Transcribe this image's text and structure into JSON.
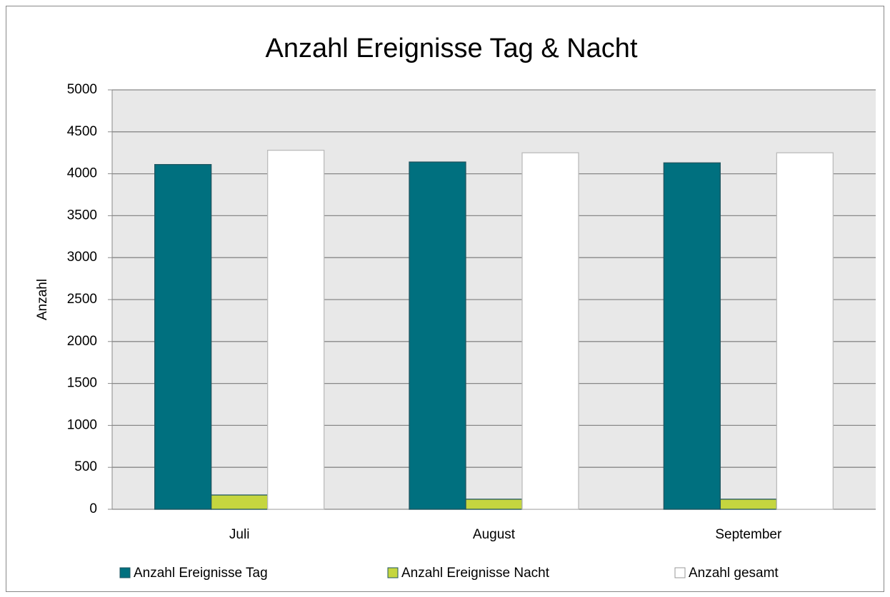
{
  "chart_data": {
    "type": "bar",
    "title": "Anzahl Ereignisse Tag & Nacht",
    "y_label": "Anzahl",
    "categories": [
      "Juli",
      "August",
      "September"
    ],
    "series": [
      {
        "name": "Anzahl Ereignisse Tag",
        "color": "#00707f",
        "values": [
          4110,
          4140,
          4130
        ]
      },
      {
        "name": "Anzahl Ereignisse Nacht",
        "color": "#c5d63f",
        "values": [
          170,
          120,
          120
        ]
      },
      {
        "name": "Anzahl gesamt",
        "color": "#ffffff",
        "values": [
          4280,
          4250,
          4250
        ]
      }
    ],
    "ylim": [
      0,
      5000
    ],
    "yticks": [
      0,
      500,
      1000,
      1500,
      2000,
      2500,
      3000,
      3500,
      4000,
      4500,
      5000
    ],
    "grid": true,
    "legend": "bottom"
  }
}
